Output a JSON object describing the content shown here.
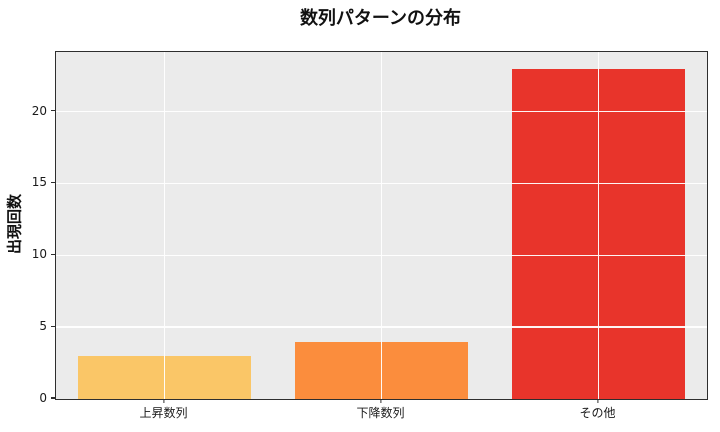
{
  "figure": {
    "background": "#ffffff",
    "plot_background": "#ebebeb",
    "spine_color": "#2e2e2e",
    "grid_color": "#ffffff"
  },
  "chart_data": {
    "type": "bar",
    "title": "数列パターンの分布",
    "xlabel": "",
    "ylabel": "出現回数",
    "categories": [
      "上昇数列",
      "下降数列",
      "その他"
    ],
    "values": [
      3,
      4,
      23
    ],
    "bar_colors": [
      "#FAC667",
      "#FB8D3D",
      "#E8342B"
    ],
    "yticks": [
      0,
      5,
      10,
      15,
      20
    ],
    "ylim": [
      0,
      24.15
    ],
    "bar_width_fraction": 0.8,
    "grid": {
      "horizontal": true,
      "vertical": true,
      "color": "#ffffff",
      "drawn_over_bars": true
    },
    "legend": "none"
  }
}
